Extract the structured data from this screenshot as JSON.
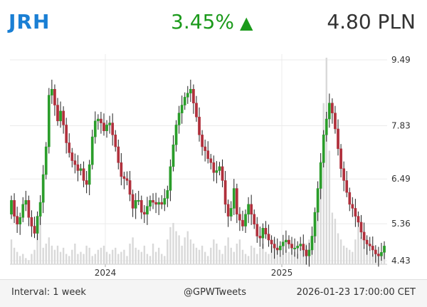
{
  "header": {
    "ticker": "JRH",
    "change": "3.45%",
    "change_icon": "up-triangle-icon",
    "price": "4.80 PLN"
  },
  "footer": {
    "interval": "Interval: 1 week",
    "source": "@GPWTweets",
    "timestamp": "2026-01-23 17:00:00 CET"
  },
  "colors": {
    "up": "#2a9d2a",
    "down": "#b0303c",
    "volume": "#d9d9d9",
    "grid": "#ebebeb",
    "ticker": "#1a7fd4",
    "change": "#1b9a1b"
  },
  "chart_data": {
    "type": "candlestick",
    "y_ticks": [
      "9.49",
      "7.83",
      "6.49",
      "5.36",
      "4.43"
    ],
    "y_tick_values": [
      9.49,
      7.83,
      6.49,
      5.36,
      4.43
    ],
    "x_ticks": [
      "2024",
      "2025"
    ],
    "grid": true,
    "close": [
      5.95,
      5.55,
      5.35,
      5.52,
      5.85,
      5.95,
      5.52,
      5.3,
      5.12,
      5.55,
      5.9,
      6.6,
      7.3,
      8.6,
      8.75,
      8.35,
      7.95,
      8.2,
      7.85,
      7.4,
      7.15,
      6.95,
      6.85,
      6.7,
      6.75,
      6.45,
      6.35,
      6.85,
      7.55,
      7.95,
      8.0,
      7.9,
      7.7,
      7.85,
      7.9,
      7.6,
      7.3,
      6.9,
      6.55,
      6.5,
      6.45,
      6.1,
      5.75,
      5.95,
      5.95,
      5.65,
      5.6,
      5.8,
      5.95,
      5.9,
      5.85,
      5.9,
      5.85,
      6.0,
      6.2,
      6.8,
      7.35,
      7.85,
      8.15,
      8.35,
      8.55,
      8.65,
      8.75,
      8.4,
      8.05,
      7.6,
      7.3,
      7.2,
      7.0,
      6.9,
      6.65,
      6.7,
      6.8,
      6.45,
      5.85,
      5.55,
      5.75,
      6.25,
      5.6,
      5.45,
      5.3,
      5.6,
      5.85,
      5.6,
      5.35,
      5.05,
      5.0,
      5.25,
      5.1,
      4.95,
      4.85,
      4.75,
      4.7,
      4.8,
      4.9,
      4.95,
      4.85,
      4.75,
      4.75,
      4.8,
      4.85,
      4.7,
      4.55,
      4.7,
      5.05,
      5.65,
      6.25,
      6.9,
      7.6,
      8.0,
      8.4,
      8.15,
      7.75,
      7.25,
      6.75,
      6.45,
      6.15,
      5.85,
      5.75,
      5.55,
      5.4,
      5.15,
      4.95,
      4.85,
      4.8,
      4.7,
      4.6,
      4.55,
      4.64,
      4.8
    ],
    "volume_scale": [
      0.12,
      0.08,
      0.06,
      0.04,
      0.05,
      0.03,
      0.02,
      0.05,
      0.07,
      0.15,
      0.26,
      0.08,
      0.1,
      0.13,
      0.09,
      0.07,
      0.09,
      0.06,
      0.08,
      0.05,
      0.04,
      0.07,
      0.1,
      0.05,
      0.06,
      0.05,
      0.09,
      0.08,
      0.04,
      0.05,
      0.07,
      0.08,
      0.09,
      0.06,
      0.05,
      0.07,
      0.08,
      0.05,
      0.06,
      0.07,
      0.04,
      0.1,
      0.13,
      0.08,
      0.07,
      0.06,
      0.09,
      0.05,
      0.04,
      0.1,
      0.06,
      0.08,
      0.05,
      0.04,
      0.12,
      0.18,
      0.2,
      0.16,
      0.14,
      0.09,
      0.13,
      0.16,
      0.12,
      0.1,
      0.08,
      0.07,
      0.09,
      0.06,
      0.04,
      0.08,
      0.12,
      0.1,
      0.07,
      0.05,
      0.09,
      0.13,
      0.08,
      0.06,
      0.1,
      0.12,
      0.07,
      0.05,
      0.04,
      0.09,
      0.08,
      0.05,
      0.08,
      0.1,
      0.06,
      0.05,
      0.09,
      0.12,
      0.08,
      0.04,
      0.05,
      0.07,
      0.06,
      0.09,
      0.06,
      0.05,
      0.08,
      0.07,
      0.1,
      0.12,
      0.07,
      0.2,
      0.35,
      0.5,
      0.78,
      1.0,
      0.55,
      0.25,
      0.22,
      0.15,
      0.12,
      0.09,
      0.08,
      0.07,
      0.06,
      0.12,
      0.18,
      0.13,
      0.08,
      0.1,
      0.07,
      0.05,
      0.06,
      0.04,
      0.05,
      0.09
    ]
  }
}
